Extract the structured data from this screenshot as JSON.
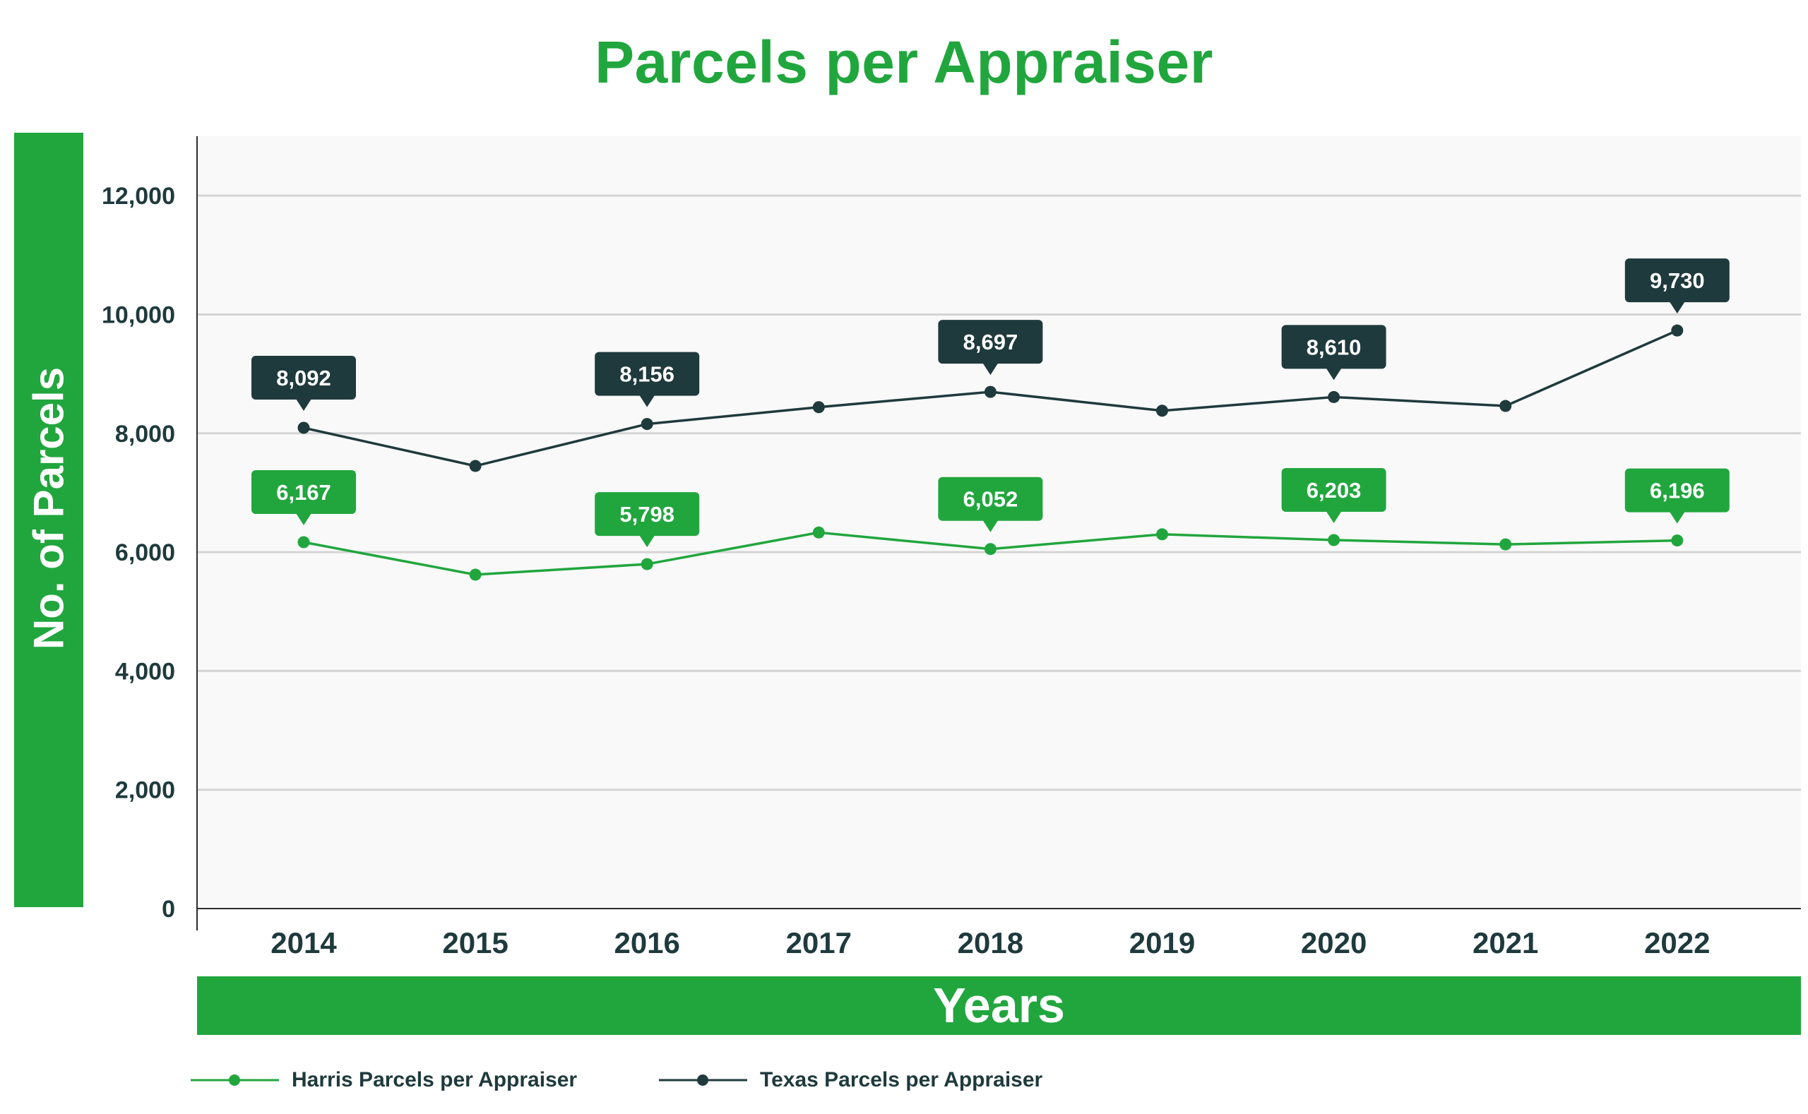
{
  "chart_data": {
    "type": "line",
    "title": "Parcels per Appraiser",
    "xlabel": "Years",
    "ylabel": "No. of Parcels",
    "categories": [
      "2014",
      "2015",
      "2016",
      "2017",
      "2018",
      "2019",
      "2020",
      "2021",
      "2022"
    ],
    "ylim": [
      0,
      13000
    ],
    "yticks": [
      0,
      2000,
      4000,
      6000,
      8000,
      10000,
      12000
    ],
    "ytick_labels": [
      "0",
      "2,000",
      "4,000",
      "6,000",
      "8,000",
      "10,000",
      "12,000"
    ],
    "grid": true,
    "legend_position": "bottom-left",
    "series": [
      {
        "name": "Harris Parcels per Appraiser",
        "color": "#21a63e",
        "values": [
          6167,
          5620,
          5798,
          6330,
          6052,
          6300,
          6203,
          6130,
          6196
        ],
        "data_labels": [
          {
            "index": 0,
            "text": "6,167"
          },
          {
            "index": 2,
            "text": "5,798"
          },
          {
            "index": 4,
            "text": "6,052"
          },
          {
            "index": 6,
            "text": "6,203"
          },
          {
            "index": 8,
            "text": "6,196"
          }
        ]
      },
      {
        "name": "Texas Parcels per Appraiser",
        "color": "#1f3a3d",
        "values": [
          8092,
          7450,
          8156,
          8440,
          8697,
          8380,
          8610,
          8460,
          9730
        ],
        "data_labels": [
          {
            "index": 0,
            "text": "8,092"
          },
          {
            "index": 2,
            "text": "8,156"
          },
          {
            "index": 4,
            "text": "8,697"
          },
          {
            "index": 6,
            "text": "8,610"
          },
          {
            "index": 8,
            "text": "9,730"
          }
        ]
      }
    ]
  },
  "colors": {
    "accent": "#21a63e",
    "dark": "#1f3a3d",
    "plot_background": "#f9f9f9",
    "gridline": "#d4d4d4"
  }
}
